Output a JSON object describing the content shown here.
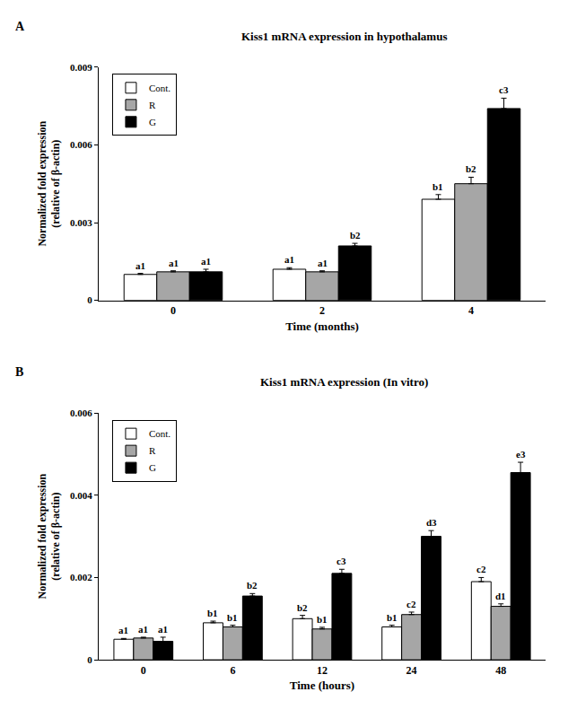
{
  "chart_data": [
    {
      "type": "bar",
      "panel": "A",
      "title": "Kiss1 mRNA expression in hypothalamus",
      "x_label": "Time (months)",
      "y_label": "Normalized fold expression\n(relative of β-actin)",
      "categories": [
        "0",
        "2",
        "4"
      ],
      "series": [
        {
          "name": "Cont.",
          "color": "#ffffff",
          "values": [
            0.001,
            0.0012,
            0.0039
          ],
          "errors": [
            4e-05,
            6e-05,
            0.00018
          ],
          "annotations": [
            "a1",
            "a1",
            "b1"
          ]
        },
        {
          "name": "R",
          "color": "#a6a6a6",
          "values": [
            0.0011,
            0.0011,
            0.0045
          ],
          "errors": [
            4e-05,
            4e-05,
            0.00025
          ],
          "annotations": [
            "a1",
            "a1",
            "b2"
          ]
        },
        {
          "name": "G",
          "color": "#000000",
          "values": [
            0.0011,
            0.0021,
            0.0074
          ],
          "errors": [
            0.0001,
            0.0001,
            0.0004
          ],
          "annotations": [
            "a1",
            "b2",
            "c3"
          ]
        }
      ],
      "ylim": [
        0,
        0.009
      ],
      "yticks": [
        0,
        0.003,
        0.006,
        0.009
      ],
      "legend": "upper left",
      "grid": false
    },
    {
      "type": "bar",
      "panel": "B",
      "title": "Kiss1 mRNA expression (In vitro)",
      "x_label": "Time (hours)",
      "y_label": "Normalized fold expression\n(relative of β-actin)",
      "categories": [
        "0",
        "6",
        "12",
        "24",
        "48"
      ],
      "series": [
        {
          "name": "Cont.",
          "color": "#ffffff",
          "values": [
            0.0005,
            0.0009,
            0.001,
            0.0008,
            0.0019
          ],
          "errors": [
            2e-05,
            4e-05,
            8e-05,
            4e-05,
            0.0001
          ],
          "annotations": [
            "a1",
            "b1",
            "b2",
            "b1",
            "c2"
          ]
        },
        {
          "name": "R",
          "color": "#a6a6a6",
          "values": [
            0.00053,
            0.0008,
            0.00075,
            0.0011,
            0.0013
          ],
          "errors": [
            2e-05,
            4e-05,
            4e-05,
            6e-05,
            6e-05
          ],
          "annotations": [
            "a1",
            "b1",
            "b1",
            "c2",
            "d1"
          ]
        },
        {
          "name": "G",
          "color": "#000000",
          "values": [
            0.00045,
            0.00155,
            0.0021,
            0.003,
            0.00455
          ],
          "errors": [
            0.0001,
            6e-05,
            0.0001,
            0.00014,
            0.00025
          ],
          "annotations": [
            "a1",
            "b2",
            "c3",
            "d3",
            "e3"
          ]
        }
      ],
      "ylim": [
        0,
        0.006
      ],
      "yticks": [
        0,
        0.002,
        0.004,
        0.006
      ],
      "legend": "upper left",
      "grid": false
    }
  ]
}
